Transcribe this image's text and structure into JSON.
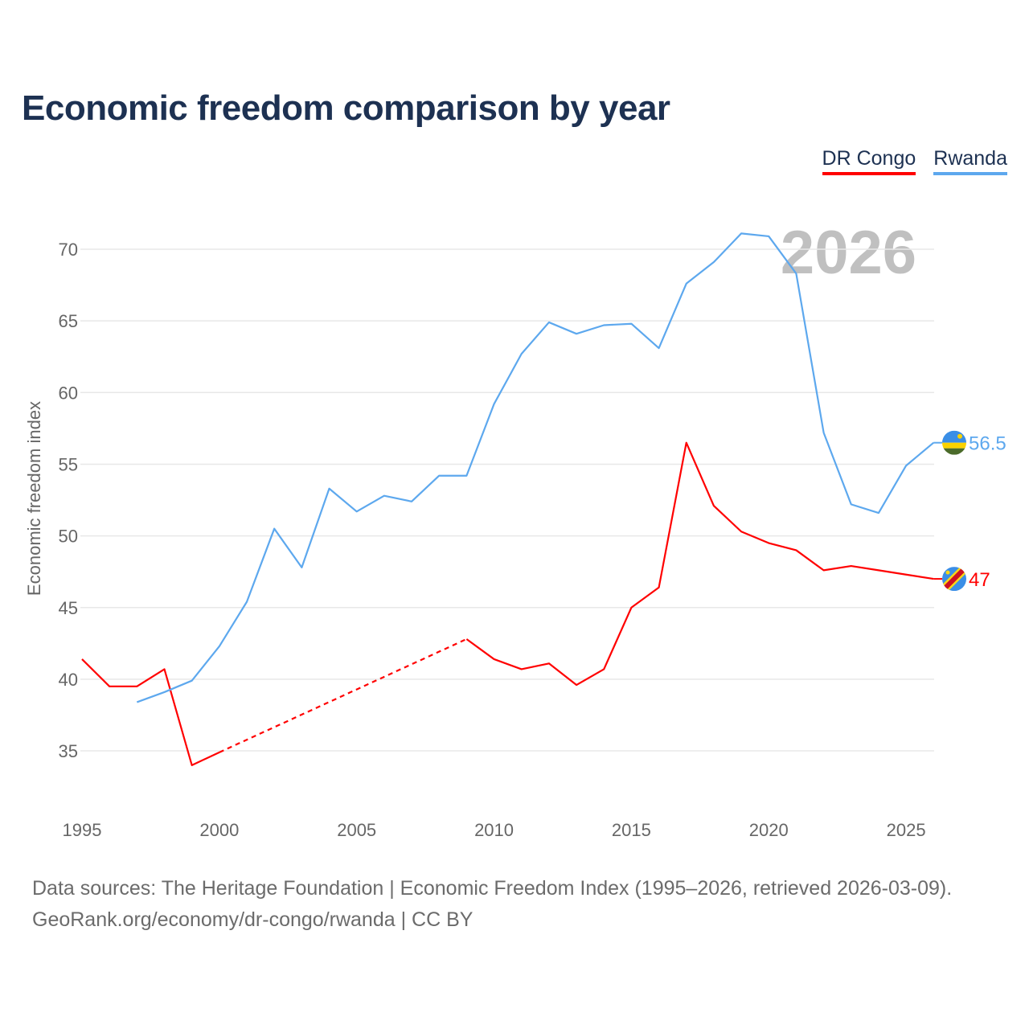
{
  "chart_data": {
    "type": "line",
    "title": "Economic freedom comparison by year",
    "xlabel": "",
    "ylabel": "Economic freedom index",
    "x": [
      1995,
      1996,
      1997,
      1998,
      1999,
      2000,
      2001,
      2002,
      2003,
      2004,
      2005,
      2006,
      2007,
      2008,
      2009,
      2010,
      2011,
      2012,
      2013,
      2014,
      2015,
      2016,
      2017,
      2018,
      2019,
      2020,
      2021,
      2022,
      2023,
      2024,
      2025,
      2026
    ],
    "xticks": [
      1995,
      2000,
      2005,
      2010,
      2015,
      2020,
      2025
    ],
    "yticks": [
      35,
      40,
      45,
      50,
      55,
      60,
      65,
      70
    ],
    "xlim": [
      1995,
      2026
    ],
    "ylim": [
      32,
      72
    ],
    "grid": true,
    "legend_position": "top-right",
    "watermark_year": "2026",
    "series": [
      {
        "name": "DR Congo",
        "color": "#ff0000",
        "end_label": "47",
        "values": [
          41.4,
          39.5,
          39.5,
          40.7,
          34.0,
          34.9,
          null,
          null,
          null,
          null,
          null,
          null,
          null,
          null,
          42.8,
          41.4,
          40.7,
          41.1,
          39.6,
          40.7,
          45.0,
          46.4,
          56.5,
          52.1,
          50.3,
          49.5,
          49.0,
          47.6,
          47.9,
          47.6,
          47.3,
          47.0
        ]
      },
      {
        "name": "Rwanda",
        "color": "#5da8ee",
        "end_label": "56.5",
        "values": [
          null,
          null,
          38.4,
          39.1,
          39.9,
          42.3,
          45.4,
          50.5,
          47.8,
          53.3,
          51.7,
          52.8,
          52.4,
          54.2,
          54.2,
          59.2,
          62.7,
          64.9,
          64.1,
          64.7,
          64.8,
          63.1,
          67.6,
          69.1,
          71.1,
          70.9,
          68.3,
          57.2,
          52.2,
          51.6,
          54.9,
          56.5
        ]
      }
    ]
  },
  "source_line1": "Data sources: The Heritage Foundation | Economic Freedom Index (1995–2026, retrieved 2026-03-09).",
  "source_line2": "GeoRank.org/economy/dr-congo/rwanda | CC BY"
}
